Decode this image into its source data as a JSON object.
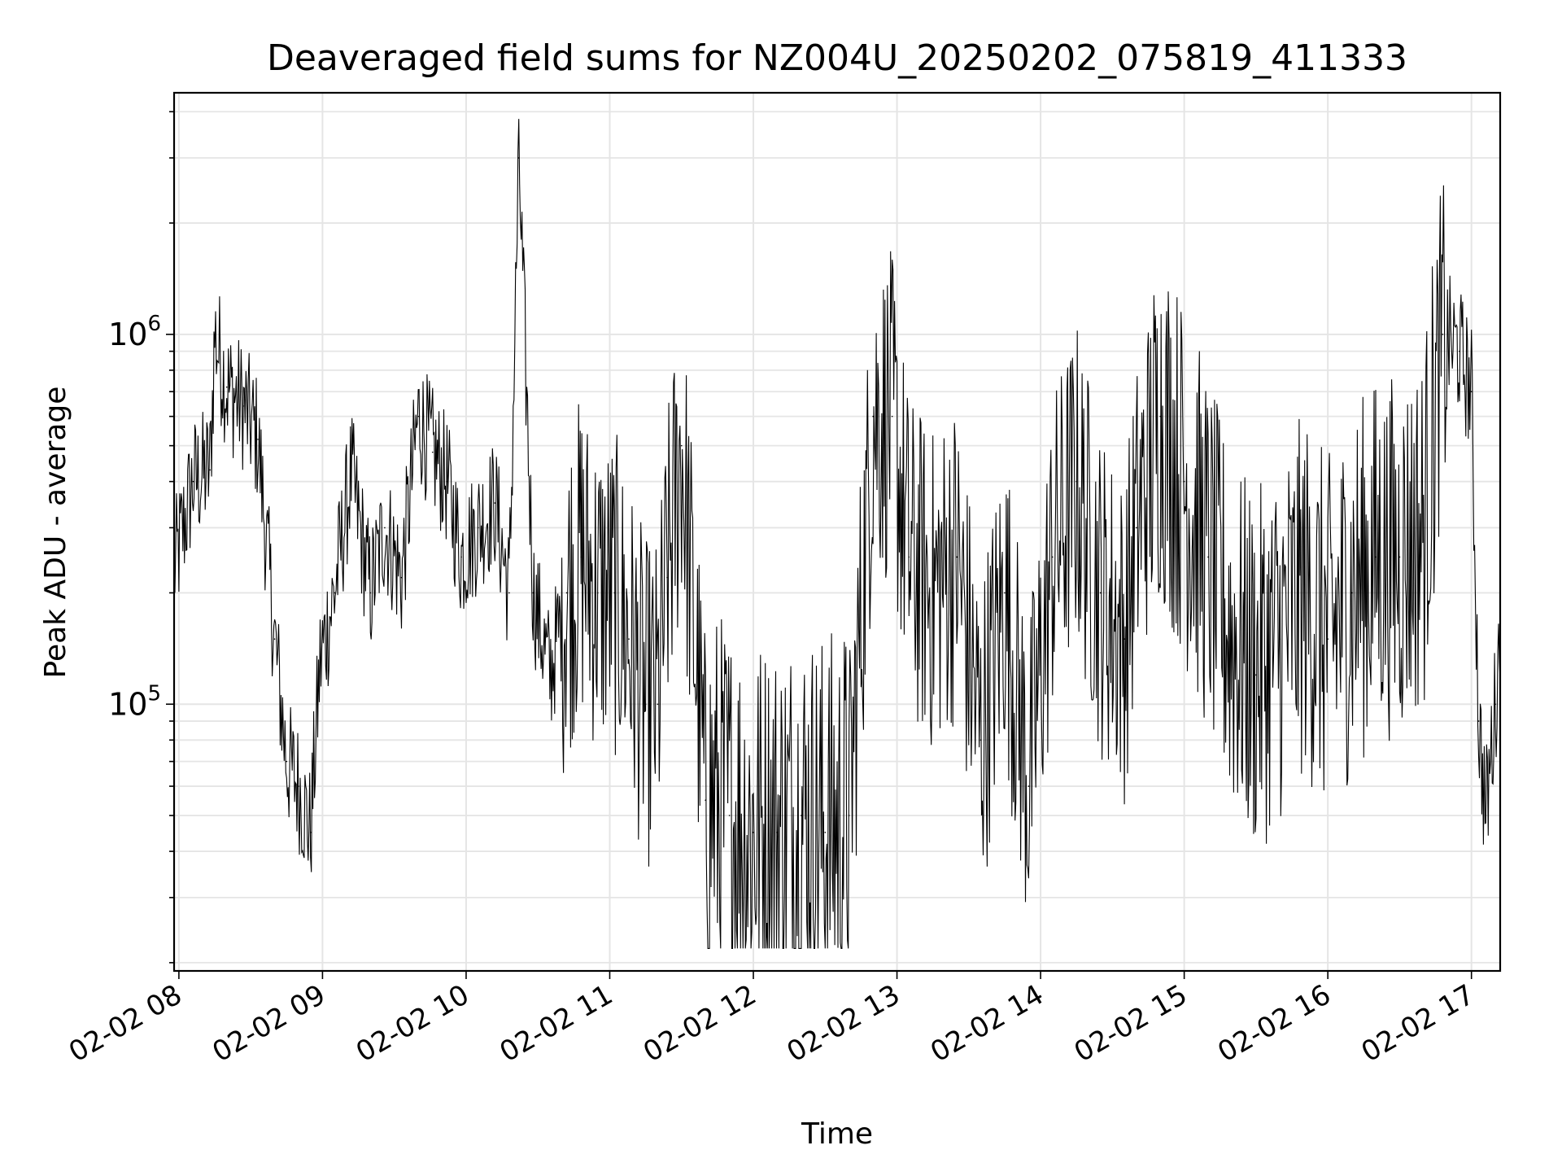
{
  "chart_data": {
    "type": "line",
    "title": "Deaveraged field sums for NZ004U_20250202_075819_411333",
    "xlabel": "Time",
    "ylabel": "Peak ADU - average",
    "yscale": "log",
    "ylim": [
      19000,
      4500000
    ],
    "xlim": [
      "2025-02-02 07:58",
      "2025-02-02 17:12"
    ],
    "x_ticks": [
      "02-02 08",
      "02-02 09",
      "02-02 10",
      "02-02 11",
      "02-02 12",
      "02-02 13",
      "02-02 14",
      "02-02 15",
      "02-02 16",
      "02-02 17"
    ],
    "y_ticks": [
      {
        "base": "10",
        "exponent": "5",
        "value": 100000
      },
      {
        "base": "10",
        "exponent": "6",
        "value": 1000000
      }
    ],
    "grid": true,
    "line_color": "#000000",
    "series": [
      {
        "x": [
          "07:58",
          "08:06",
          "08:13",
          "08:15",
          "08:20",
          "08:27",
          "08:33",
          "08:40",
          "08:45",
          "08:50",
          "08:55",
          "08:59",
          "09:05",
          "09:12",
          "09:20",
          "09:26",
          "09:33",
          "09:40",
          "09:46",
          "09:52",
          "09:58",
          "10:05",
          "10:12",
          "10:18",
          "10:22",
          "10:28",
          "10:35",
          "10:42",
          "10:48",
          "10:55",
          "11:02",
          "11:08",
          "11:15",
          "11:20",
          "11:24",
          "11:30",
          "11:40",
          "11:50",
          "12:00",
          "12:10",
          "12:20",
          "12:30",
          "12:40",
          "12:50",
          "12:58",
          "13:05",
          "13:15",
          "13:25",
          "13:35",
          "13:45",
          "13:55",
          "14:05",
          "14:15",
          "14:25",
          "14:35",
          "14:40",
          "14:50",
          "15:00",
          "15:10",
          "15:20",
          "15:30",
          "15:40",
          "15:50",
          "16:00",
          "16:10",
          "16:20",
          "16:30",
          "16:40",
          "16:48",
          "16:55",
          "17:00",
          "17:03",
          "17:06",
          "17:10",
          "17:12"
        ],
        "y": [
          230000,
          400000,
          430000,
          1000000,
          720000,
          640000,
          520000,
          150000,
          70000,
          60000,
          45000,
          130000,
          200000,
          420000,
          200000,
          300000,
          220000,
          600000,
          480000,
          400000,
          250000,
          300000,
          350000,
          200000,
          3000000,
          200000,
          120000,
          200000,
          250000,
          200000,
          200000,
          150000,
          100000,
          100000,
          220000,
          500000,
          55000,
          50000,
          45000,
          45000,
          50000,
          45000,
          50000,
          600000,
          600000,
          250000,
          200000,
          250000,
          80000,
          200000,
          60000,
          250000,
          400000,
          200000,
          150000,
          300000,
          600000,
          400000,
          250000,
          150000,
          120000,
          150000,
          200000,
          150000,
          200000,
          250000,
          250000,
          300000,
          1000000,
          900000,
          700000,
          90000,
          50000,
          100000,
          160000
        ]
      }
    ]
  }
}
